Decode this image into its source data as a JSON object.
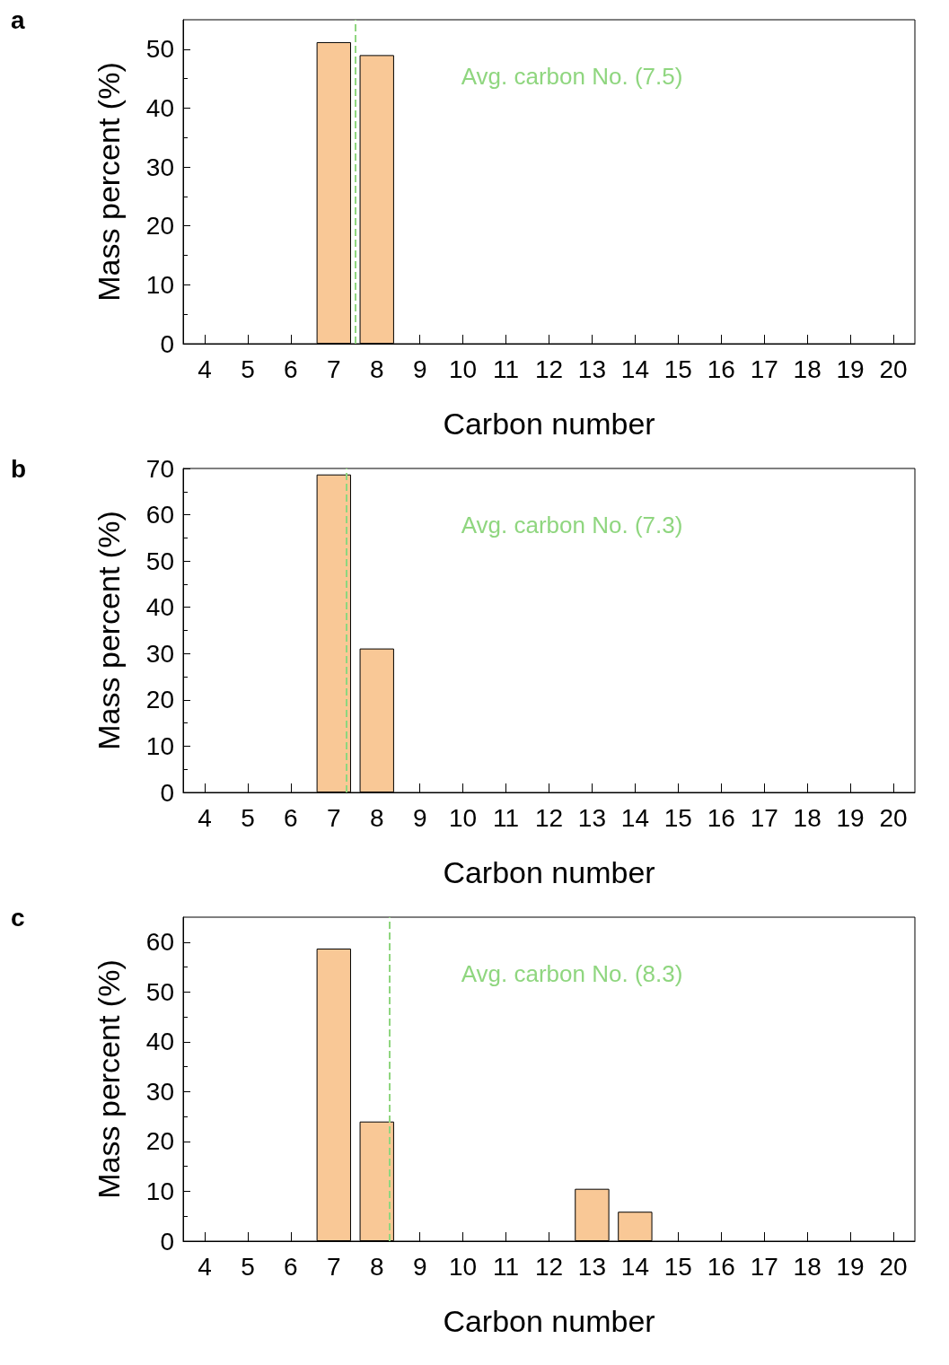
{
  "chart_data": [
    {
      "type": "bar",
      "title": "a",
      "xlabel": "Carbon number",
      "ylabel": "Mass percent (%)",
      "x": [
        7,
        8
      ],
      "values": [
        51.2,
        49.0
      ],
      "color": "#f9c896",
      "xlim": [
        3.5,
        20.5
      ],
      "xticks": [
        4,
        5,
        6,
        7,
        8,
        9,
        10,
        11,
        12,
        13,
        14,
        15,
        16,
        17,
        18,
        19,
        20
      ],
      "ylim": [
        0,
        55
      ],
      "yticks": [
        0,
        10,
        20,
        30,
        40,
        50
      ],
      "ref_lines": [
        {
          "axis": "x",
          "value": 7.5,
          "label": "Avg. carbon No. (7.5)",
          "color": "#8fd67f",
          "line_style": "dashed"
        }
      ]
    },
    {
      "type": "bar",
      "title": "b",
      "xlabel": "Carbon number",
      "ylabel": "Mass percent (%)",
      "x": [
        7,
        8
      ],
      "values": [
        68.7,
        31.1
      ],
      "color": "#f9c896",
      "xlim": [
        3.5,
        20.5
      ],
      "xticks": [
        4,
        5,
        6,
        7,
        8,
        9,
        10,
        11,
        12,
        13,
        14,
        15,
        16,
        17,
        18,
        19,
        20
      ],
      "ylim": [
        0,
        70
      ],
      "yticks": [
        0,
        10,
        20,
        30,
        40,
        50,
        60,
        70
      ],
      "ref_lines": [
        {
          "axis": "x",
          "value": 7.3,
          "label": "Avg. carbon No. (7.3)",
          "color": "#8fd67f",
          "line_style": "dashed"
        }
      ]
    },
    {
      "type": "bar",
      "title": "c",
      "xlabel": "Carbon number",
      "ylabel": "Mass percent (%)",
      "x": [
        7,
        8,
        13,
        14
      ],
      "values": [
        58.7,
        24.0,
        10.5,
        5.9
      ],
      "color": "#f9c896",
      "xlim": [
        3.5,
        20.5
      ],
      "xticks": [
        4,
        5,
        6,
        7,
        8,
        9,
        10,
        11,
        12,
        13,
        14,
        15,
        16,
        17,
        18,
        19,
        20
      ],
      "ylim": [
        0,
        65
      ],
      "yticks": [
        0,
        10,
        20,
        30,
        40,
        50,
        60
      ],
      "ref_lines": [
        {
          "axis": "x",
          "value": 8.3,
          "label": "Avg. carbon No. (8.3)",
          "color": "#8fd67f",
          "line_style": "dashed"
        }
      ]
    }
  ]
}
